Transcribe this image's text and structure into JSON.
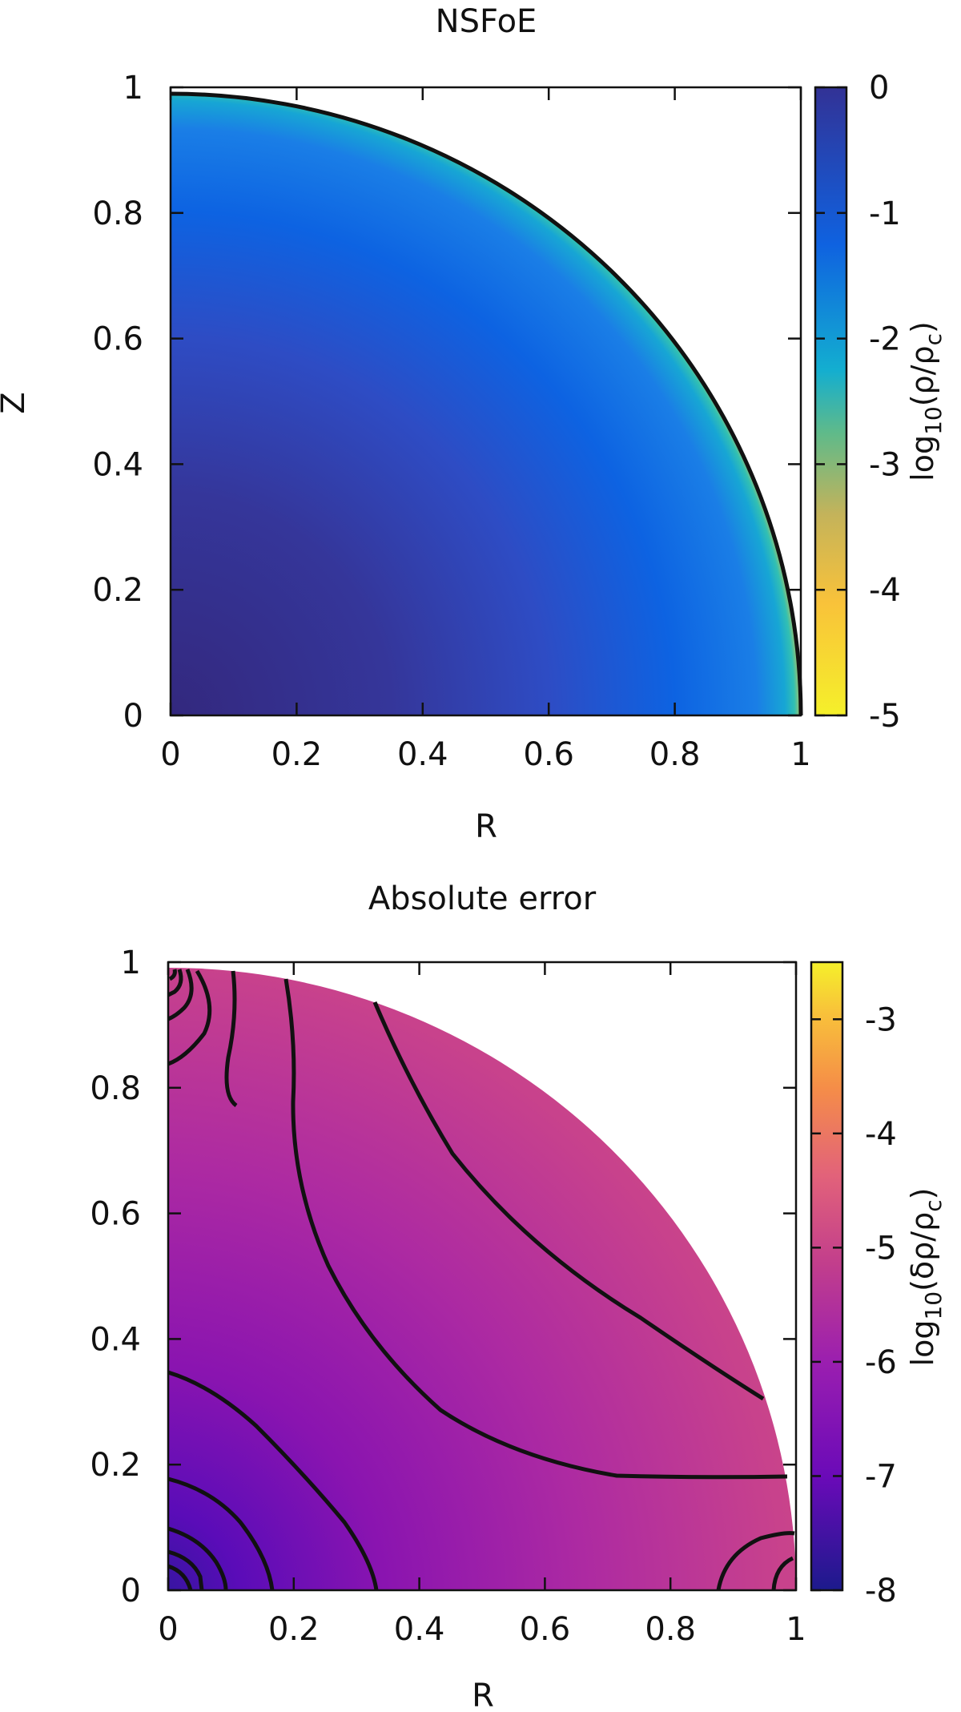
{
  "chart_data": [
    {
      "type": "heatmap",
      "title": "NSFoE",
      "xlabel": "R",
      "ylabel": "Z",
      "xlim": [
        0,
        1
      ],
      "ylim": [
        0,
        1
      ],
      "x_ticks": [
        "0",
        "0.2",
        "0.4",
        "0.6",
        "0.8",
        "1"
      ],
      "y_ticks": [
        "0",
        "0.2",
        "0.4",
        "0.6",
        "0.8",
        "1"
      ],
      "domain": "quarter-disk r<=1",
      "colorbar": {
        "label_prefix": "log",
        "label_sub": "10",
        "label_body": "(ρ/ρ",
        "label_sub2": "c",
        "label_end": ")",
        "range": [
          -5,
          0
        ],
        "ticks": [
          "-5",
          "-4",
          "-3",
          "-2",
          "-1",
          "0"
        ],
        "colors": [
          "#f5f02a",
          "#f9c23a",
          "#c4b35a",
          "#3fbfa5",
          "#13aed0",
          "#0f62e0",
          "#323296"
        ]
      },
      "grid": false
    },
    {
      "type": "heatmap",
      "title": "Absolute error",
      "xlabel": "R",
      "ylabel": "",
      "xlim": [
        0,
        1
      ],
      "ylim": [
        0,
        1
      ],
      "x_ticks": [
        "0",
        "0.2",
        "0.4",
        "0.6",
        "0.8",
        "1"
      ],
      "y_ticks": [
        "0",
        "0.2",
        "0.4",
        "0.6",
        "0.8",
        "1"
      ],
      "domain": "quarter-disk r<=1",
      "contours": true,
      "colorbar": {
        "label_prefix": "log",
        "label_sub": "10",
        "label_body": "(δρ/ρ",
        "label_sub2": "c",
        "label_end": ")",
        "range": [
          -8,
          -2.5
        ],
        "ticks": [
          "-8",
          "-7",
          "-6",
          "-5",
          "-4",
          "-3"
        ],
        "colors": [
          "#1c1a8c",
          "#6a0ab8",
          "#9a1eb0",
          "#c23e8c",
          "#e2627a",
          "#f58d48",
          "#f8c23a",
          "#f5f02a"
        ]
      },
      "grid": false
    }
  ]
}
